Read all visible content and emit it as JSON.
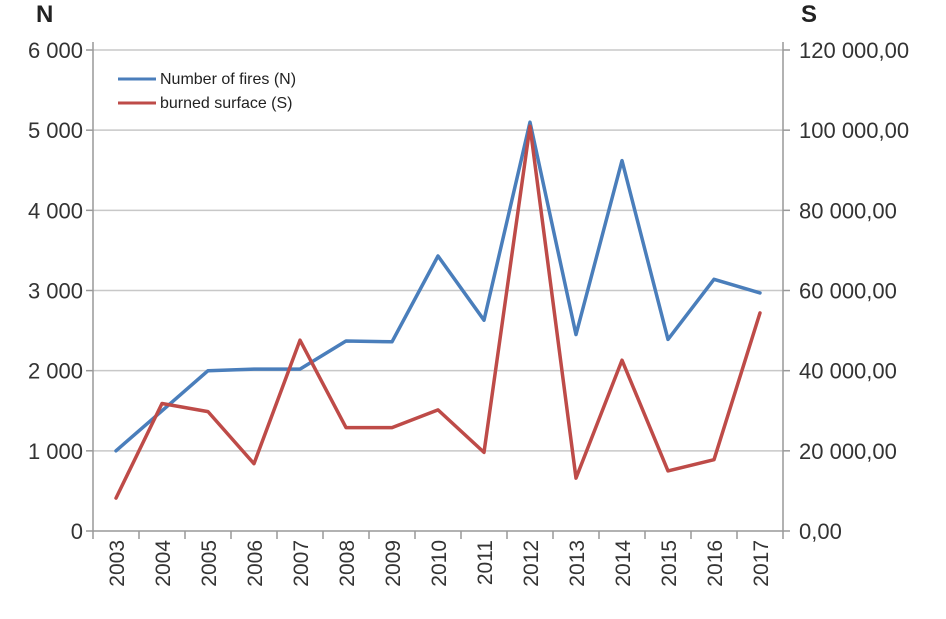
{
  "chart_data": {
    "type": "line",
    "categories": [
      "2003",
      "2004",
      "2005",
      "2006",
      "2007",
      "2008",
      "2009",
      "2010",
      "2011",
      "2012",
      "2013",
      "2014",
      "2015",
      "2016",
      "2017"
    ],
    "series": [
      {
        "name": "Number of fires (N)",
        "axis": "left",
        "color": "#4a7ebb",
        "values": [
          1000,
          1500,
          2000,
          2020,
          2020,
          2370,
          2360,
          3430,
          2630,
          5100,
          2450,
          4620,
          2390,
          3140,
          2970
        ]
      },
      {
        "name": "burned surface (S)",
        "axis": "right",
        "color": "#be4b48",
        "values": [
          8200,
          31800,
          29800,
          16800,
          47600,
          25800,
          25800,
          30200,
          19600,
          101000,
          13200,
          42600,
          15000,
          17800,
          54400
        ]
      }
    ],
    "ylabel_left": "N",
    "ylabel_right": "S",
    "ylim_left": [
      0,
      6000
    ],
    "ylim_right": [
      0,
      120000
    ],
    "yticks_left": [
      "0",
      "1 000",
      "2 000",
      "3 000",
      "4 000",
      "5 000",
      "6 000"
    ],
    "yticks_right": [
      "0,00",
      "20 000,00",
      "40 000,00",
      "60 000,00",
      "80 000,00",
      "100 000,00",
      "120 000,00"
    ],
    "grid": true,
    "legend_position": "top-left"
  }
}
